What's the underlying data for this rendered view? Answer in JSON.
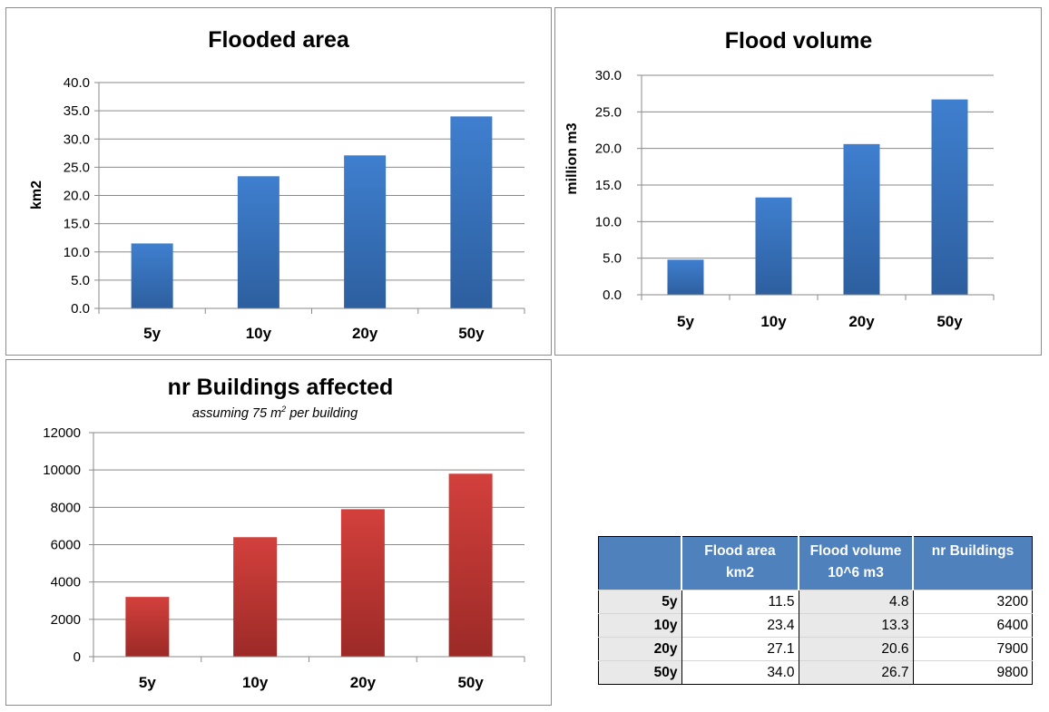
{
  "chart_data": [
    {
      "type": "bar",
      "title": "Flooded area",
      "categories": [
        "5y",
        "10y",
        "20y",
        "50y"
      ],
      "values": [
        11.5,
        23.4,
        27.1,
        34.0
      ],
      "xlabel": "",
      "ylabel": "km2",
      "ylim": [
        0,
        40
      ],
      "yticks": [
        "0.0",
        "5.0",
        "10.0",
        "15.0",
        "20.0",
        "25.0",
        "30.0",
        "35.0",
        "40.0"
      ],
      "color": "#3c75bf",
      "grid": true
    },
    {
      "type": "bar",
      "title": "Flood volume",
      "categories": [
        "5y",
        "10y",
        "20y",
        "50y"
      ],
      "values": [
        4.8,
        13.3,
        20.6,
        26.7
      ],
      "xlabel": "",
      "ylabel": "million m3",
      "ylim": [
        0,
        30
      ],
      "yticks": [
        "0.0",
        "5.0",
        "10.0",
        "15.0",
        "20.0",
        "25.0",
        "30.0"
      ],
      "color": "#3c75bf",
      "grid": true
    },
    {
      "type": "bar",
      "title": "nr Buildings affected",
      "subtitle_pre": "assuming 75 m",
      "subtitle_sup": "2",
      "subtitle_post": " per building",
      "categories": [
        "5y",
        "10y",
        "20y",
        "50y"
      ],
      "values": [
        3200,
        6400,
        7900,
        9800
      ],
      "xlabel": "",
      "ylabel": "",
      "ylim": [
        0,
        12000
      ],
      "yticks": [
        "0",
        "2000",
        "4000",
        "6000",
        "8000",
        "10000",
        "12000"
      ],
      "color": "#c83a37",
      "grid": true
    }
  ],
  "table": {
    "headers": [
      {
        "line1": "",
        "line2": ""
      },
      {
        "line1": "Flood area",
        "line2": "km2"
      },
      {
        "line1": "Flood volume",
        "line2": "10^6 m3"
      },
      {
        "line1": "nr Buildings",
        "line2": ""
      }
    ],
    "rows": [
      {
        "label": "5y",
        "area": "11.5",
        "volume": "4.8",
        "buildings": "3200"
      },
      {
        "label": "10y",
        "area": "23.4",
        "volume": "13.3",
        "buildings": "6400"
      },
      {
        "label": "20y",
        "area": "27.1",
        "volume": "20.6",
        "buildings": "7900"
      },
      {
        "label": "50y",
        "area": "34.0",
        "volume": "26.7",
        "buildings": "9800"
      }
    ]
  }
}
